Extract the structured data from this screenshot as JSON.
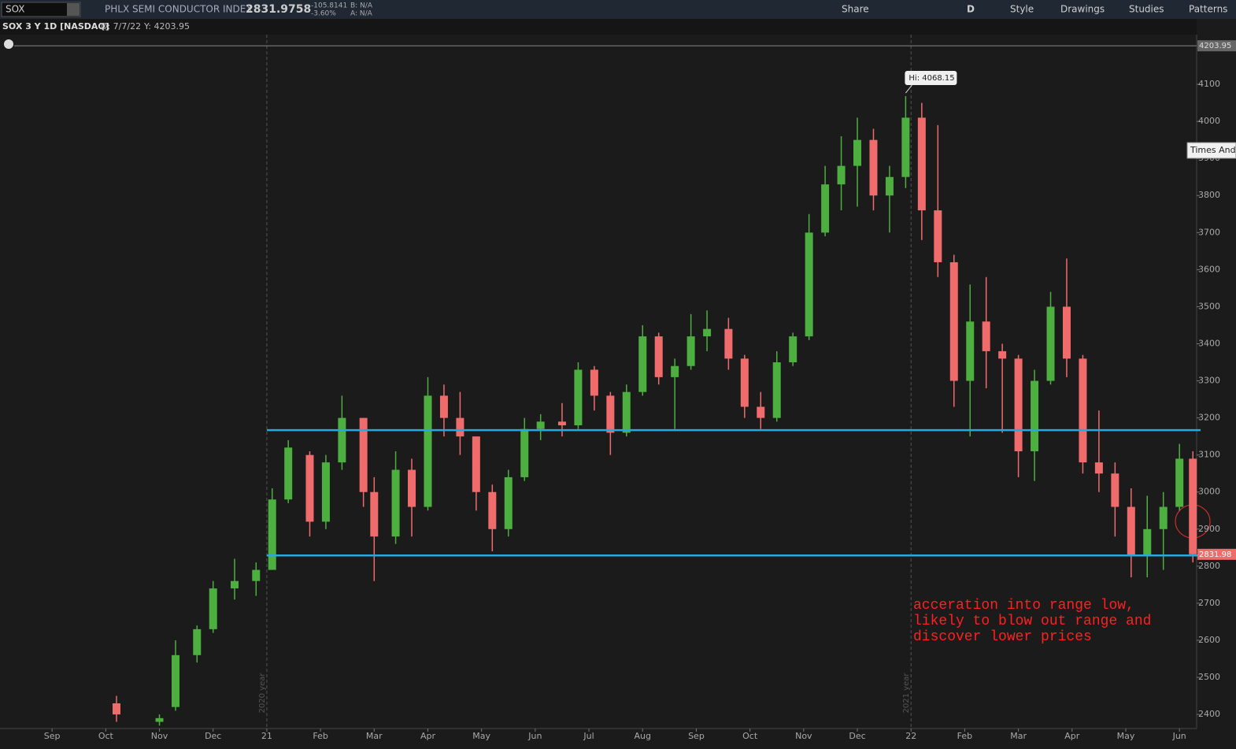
{
  "toolbar": {
    "symbol": "SOX",
    "description": "PHLX SEMI CONDUCTOR INDEX",
    "price": "2831.9758",
    "change": "-105.8141",
    "change_pct": "-3.60%",
    "bid": "B: N/A",
    "ask": "A: N/A",
    "share": "Share",
    "aggregation": "D",
    "style": "Style",
    "drawings": "Drawings",
    "studies": "Studies",
    "patterns": "Patterns"
  },
  "chart_header": {
    "name": "SOX 3 Y 1D [NASDAQ]",
    "date": "D: 7/7/22",
    "value": "Y: 4203.95"
  },
  "side_tab": "Times And",
  "chart_data": {
    "type": "candlestick",
    "x": [
      1.2,
      2.0,
      2.3,
      2.7,
      3.0,
      3.4,
      3.8,
      4.1,
      4.4,
      4.8,
      5.1,
      5.4,
      5.8,
      6.0,
      6.4,
      6.7,
      7.0,
      7.3,
      7.6,
      7.9,
      8.2,
      8.5,
      8.8,
      9.1,
      9.5,
      9.8,
      10.1,
      10.4,
      10.7,
      11.0,
      11.3,
      11.6,
      11.9,
      12.2,
      12.6,
      12.9,
      13.2,
      13.5,
      13.8,
      14.1,
      14.4,
      14.7,
      15.0,
      15.3,
      15.6,
      15.9,
      16.2,
      16.5,
      16.8,
      17.1,
      17.4,
      17.7,
      18.0,
      18.3,
      18.6,
      18.9,
      19.2,
      19.5,
      19.8,
      20.1,
      20.4,
      20.7,
      21.0,
      21.25
    ],
    "open": [
      2430,
      2380,
      2420,
      2560,
      2630,
      2740,
      2760,
      2790,
      2980,
      3100,
      2920,
      3080,
      3200,
      3000,
      2880,
      3060,
      2960,
      3260,
      3200,
      3150,
      3000,
      2900,
      3040,
      3170,
      3190,
      3180,
      3330,
      3260,
      3160,
      3270,
      3420,
      3310,
      3340,
      3420,
      3440,
      3360,
      3230,
      3200,
      3350,
      3420,
      3700,
      3830,
      3880,
      3950,
      3800,
      3850,
      4010,
      3760,
      3620,
      3300,
      3460,
      3380,
      3360,
      3110,
      3300,
      3500,
      3360,
      3080,
      3050,
      2960,
      2830,
      2900,
      2960,
      3090
    ],
    "high": [
      2450,
      2400,
      2600,
      2640,
      2760,
      2820,
      2810,
      3010,
      3140,
      3110,
      3100,
      3260,
      3200,
      3040,
      3110,
      3090,
      3310,
      3290,
      3270,
      3150,
      3020,
      3060,
      3200,
      3210,
      3240,
      3350,
      3340,
      3270,
      3290,
      3450,
      3430,
      3360,
      3480,
      3490,
      3470,
      3370,
      3270,
      3380,
      3430,
      3750,
      3880,
      3960,
      4010,
      3980,
      3880,
      4068.15,
      4050,
      3990,
      3640,
      3560,
      3580,
      3400,
      3370,
      3330,
      3540,
      3630,
      3370,
      3220,
      3080,
      3010,
      2990,
      3000,
      3130,
      3110
    ],
    "low": [
      2380,
      2370,
      2410,
      2540,
      2620,
      2710,
      2720,
      2800,
      2970,
      2880,
      2900,
      3060,
      2960,
      2760,
      2860,
      2880,
      2950,
      3150,
      3100,
      2950,
      2840,
      2880,
      3030,
      3140,
      3150,
      3170,
      3220,
      3100,
      3150,
      3260,
      3290,
      3170,
      3330,
      3380,
      3330,
      3200,
      3170,
      3190,
      3340,
      3410,
      3690,
      3760,
      3770,
      3760,
      3700,
      3820,
      3680,
      3580,
      3230,
      3150,
      3280,
      3160,
      3040,
      3030,
      3290,
      3310,
      3050,
      3000,
      2880,
      2770,
      2770,
      2790,
      2950,
      2810
    ],
    "close": [
      2400,
      2390,
      2560,
      2630,
      2740,
      2760,
      2790,
      2980,
      3120,
      2920,
      3080,
      3200,
      3000,
      2880,
      3060,
      2960,
      3260,
      3200,
      3150,
      3000,
      2900,
      3040,
      3170,
      3190,
      3180,
      3330,
      3260,
      3160,
      3270,
      3420,
      3310,
      3340,
      3420,
      3440,
      3360,
      3230,
      3200,
      3350,
      3420,
      3700,
      3830,
      3880,
      3950,
      3800,
      3850,
      4010,
      3760,
      3620,
      3300,
      3460,
      3380,
      3360,
      3110,
      3300,
      3500,
      3360,
      3080,
      3050,
      2960,
      2830,
      2900,
      2960,
      3090,
      2831.98
    ],
    "up_color": "#4caf3f",
    "down_color": "#f06b6b",
    "xlim": [
      -0.97,
      21.32
    ],
    "ylim": [
      2362,
      4234
    ],
    "xticks": [
      {
        "value": 0,
        "label": "Sep"
      },
      {
        "value": 1,
        "label": "Oct"
      },
      {
        "value": 2,
        "label": "Nov"
      },
      {
        "value": 3,
        "label": "Dec"
      },
      {
        "value": 4,
        "label": "21"
      },
      {
        "value": 5,
        "label": "Feb"
      },
      {
        "value": 6,
        "label": "Mar"
      },
      {
        "value": 7,
        "label": "Apr"
      },
      {
        "value": 8,
        "label": "May"
      },
      {
        "value": 9,
        "label": "Jun"
      },
      {
        "value": 10,
        "label": "Jul"
      },
      {
        "value": 11,
        "label": "Aug"
      },
      {
        "value": 12,
        "label": "Sep"
      },
      {
        "value": 13,
        "label": "Oct"
      },
      {
        "value": 14,
        "label": "Nov"
      },
      {
        "value": 15,
        "label": "Dec"
      },
      {
        "value": 16,
        "label": "22"
      },
      {
        "value": 17,
        "label": "Feb"
      },
      {
        "value": 18,
        "label": "Mar"
      },
      {
        "value": 19,
        "label": "Apr"
      },
      {
        "value": 20,
        "label": "May"
      },
      {
        "value": 21,
        "label": "Jun"
      }
    ],
    "yticks": [
      2400,
      2500,
      2600,
      2700,
      2800,
      2900,
      3000,
      3100,
      3200,
      3300,
      3400,
      3500,
      3600,
      3700,
      3800,
      3900,
      4000,
      4100
    ],
    "year_lines": [
      {
        "value": 4,
        "label": "2020 year"
      },
      {
        "value": 16,
        "label": "2021 year"
      }
    ],
    "levels": [
      3167,
      2829
    ],
    "level_color": "#29a8e0",
    "high_label": "Hi: 4068.15",
    "cursor_price": 4203.95,
    "last_price": 2831.98,
    "annotation": [
      "acceration into range low,",
      "likely to blow out range and",
      "discover lower prices"
    ]
  }
}
